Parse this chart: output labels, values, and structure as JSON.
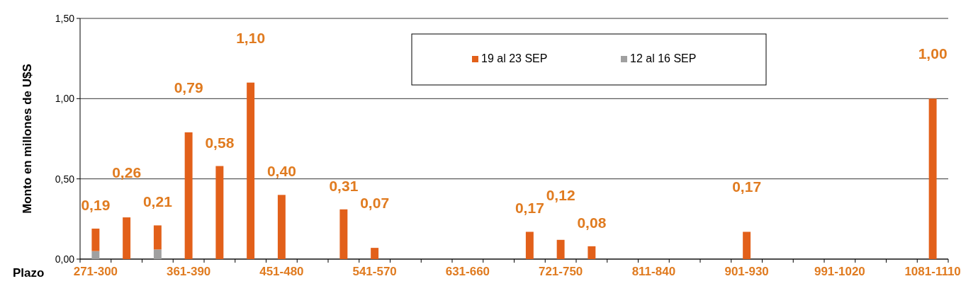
{
  "chart_data": {
    "type": "bar",
    "stacked": true,
    "xlabel": "Plazo",
    "ylabel": "Monto en  millones de U$S",
    "categories": [
      "271-300",
      null,
      null,
      "361-390",
      null,
      null,
      "451-480",
      null,
      null,
      "541-570",
      null,
      null,
      "631-660",
      null,
      null,
      "721-750",
      null,
      null,
      "811-840",
      null,
      null,
      "901-930",
      null,
      null,
      "991-1020",
      null,
      null,
      "1081-1110"
    ],
    "series": [
      {
        "name": "12 al 16 SEP",
        "color": "#a0a0a0",
        "values": [
          0.05,
          null,
          0.06,
          null,
          null,
          null,
          null,
          null,
          null,
          null,
          null,
          null,
          null,
          null,
          null,
          null,
          null,
          null,
          null,
          null,
          null,
          null,
          null,
          null,
          null,
          null,
          null,
          null
        ]
      },
      {
        "name": "19 al 23 SEP",
        "color": "#e2601a",
        "values": [
          0.14,
          0.26,
          0.15,
          0.79,
          0.58,
          1.1,
          0.4,
          null,
          0.31,
          0.07,
          null,
          null,
          null,
          null,
          0.17,
          0.12,
          0.08,
          null,
          null,
          null,
          null,
          0.17,
          null,
          null,
          null,
          null,
          null,
          1.0
        ]
      }
    ],
    "totals": [
      "0,19",
      "0,26",
      "0,21",
      "0,79",
      "0,58",
      "1,10",
      "0,40",
      null,
      "0,31",
      "0,07",
      null,
      null,
      null,
      null,
      "0,17",
      "0,12",
      "0,08",
      null,
      null,
      null,
      null,
      "0,17",
      null,
      null,
      null,
      null,
      null,
      "1,00"
    ],
    "ylim": [
      0,
      1.5
    ],
    "yticks": [
      {
        "value": 0,
        "label": "0,00"
      },
      {
        "value": 0.5,
        "label": "0,50"
      },
      {
        "value": 1,
        "label": "1,00"
      },
      {
        "value": 1.5,
        "label": "1,50"
      }
    ],
    "grid": "y",
    "legend": "top"
  }
}
